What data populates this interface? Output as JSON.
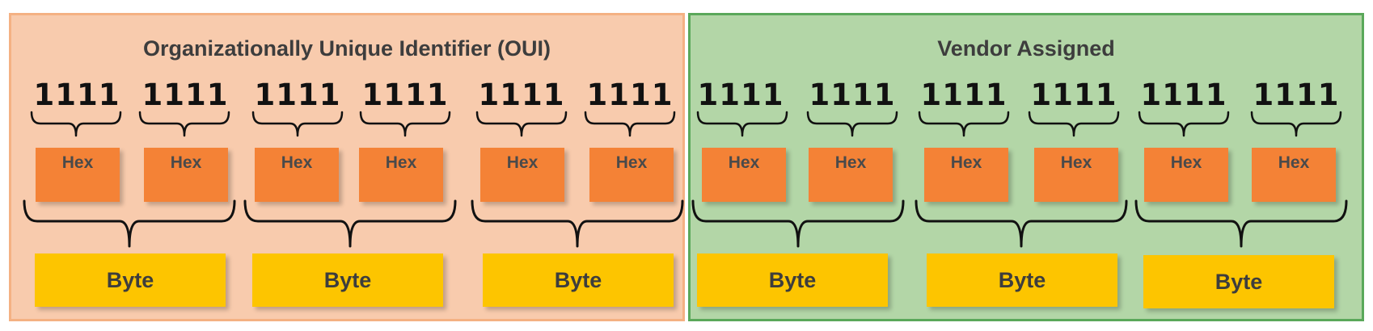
{
  "colors": {
    "oui_panel_fill": "#f8cbad",
    "oui_panel_border": "#f4b183",
    "vendor_panel_fill": "#b3d6a7",
    "vendor_panel_border": "#5aa85a",
    "hex_box": "#f48236",
    "byte_box": "#fdc500"
  },
  "oui": {
    "title": "Organizationally Unique Identifier (OUI)",
    "bytes": [
      {
        "nibbles": [
          "1111",
          "1111"
        ],
        "hex": [
          "Hex",
          "Hex"
        ],
        "byte_label": "Byte"
      },
      {
        "nibbles": [
          "1111",
          "1111"
        ],
        "hex": [
          "Hex",
          "Hex"
        ],
        "byte_label": "Byte"
      },
      {
        "nibbles": [
          "1111",
          "1111"
        ],
        "hex": [
          "Hex",
          "Hex"
        ],
        "byte_label": "Byte"
      }
    ]
  },
  "vendor": {
    "title": "Vendor Assigned",
    "bytes": [
      {
        "nibbles": [
          "1111",
          "1111"
        ],
        "hex": [
          "Hex",
          "Hex"
        ],
        "byte_label": "Byte"
      },
      {
        "nibbles": [
          "1111",
          "1111"
        ],
        "hex": [
          "Hex",
          "Hex"
        ],
        "byte_label": "Byte"
      },
      {
        "nibbles": [
          "1111",
          "1111"
        ],
        "hex": [
          "Hex",
          "Hex"
        ],
        "byte_label": "Byte"
      }
    ]
  }
}
